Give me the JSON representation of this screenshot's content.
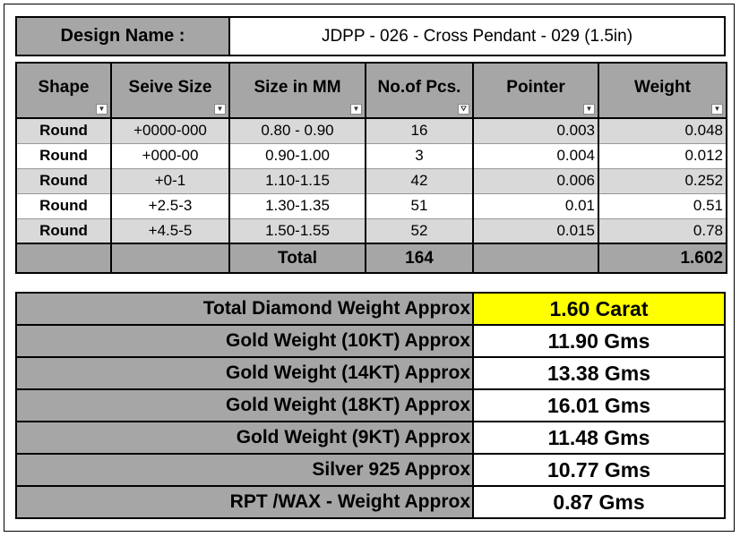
{
  "design": {
    "label": "Design Name :",
    "value": "JDPP - 026 - Cross Pendant - 029 (1.5in)"
  },
  "columns": [
    "Shape",
    "Seive Size",
    "Size in MM",
    "No.of Pcs.",
    "Pointer",
    "Weight"
  ],
  "rows": [
    {
      "shape": "Round",
      "sieve": "+0000-000",
      "mm": "0.80 - 0.90",
      "pcs": "16",
      "pointer": "0.003",
      "weight": "0.048"
    },
    {
      "shape": "Round",
      "sieve": "+000-00",
      "mm": "0.90-1.00",
      "pcs": "3",
      "pointer": "0.004",
      "weight": "0.012"
    },
    {
      "shape": "Round",
      "sieve": "+0-1",
      "mm": "1.10-1.15",
      "pcs": "42",
      "pointer": "0.006",
      "weight": "0.252"
    },
    {
      "shape": "Round",
      "sieve": "+2.5-3",
      "mm": "1.30-1.35",
      "pcs": "51",
      "pointer": "0.01",
      "weight": "0.51"
    },
    {
      "shape": "Round",
      "sieve": "+4.5-5",
      "mm": "1.50-1.55",
      "pcs": "52",
      "pointer": "0.015",
      "weight": "0.78"
    }
  ],
  "total": {
    "label": "Total",
    "pcs": "164",
    "weight": "1.602"
  },
  "summary": [
    {
      "label": "Total Diamond Weight Approx",
      "value": "1.60 Carat"
    },
    {
      "label": "Gold Weight (10KT) Approx",
      "value": "11.90 Gms"
    },
    {
      "label": "Gold Weight (14KT) Approx",
      "value": "13.38 Gms"
    },
    {
      "label": "Gold Weight (18KT) Approx",
      "value": "16.01 Gms"
    },
    {
      "label": "Gold Weight (9KT) Approx",
      "value": "11.48 Gms"
    },
    {
      "label": "Silver 925 Approx",
      "value": "10.77 Gms"
    },
    {
      "label": "RPT /WAX - Weight Approx",
      "value": "0.87 Gms"
    }
  ],
  "colors": {
    "header_gray": "#a6a6a6",
    "row_alt": "#d9d9d9",
    "highlight": "#ffff00"
  },
  "icons": {
    "column_filter": "dropdown-arrow-icon",
    "active_filter": "filter-icon"
  }
}
